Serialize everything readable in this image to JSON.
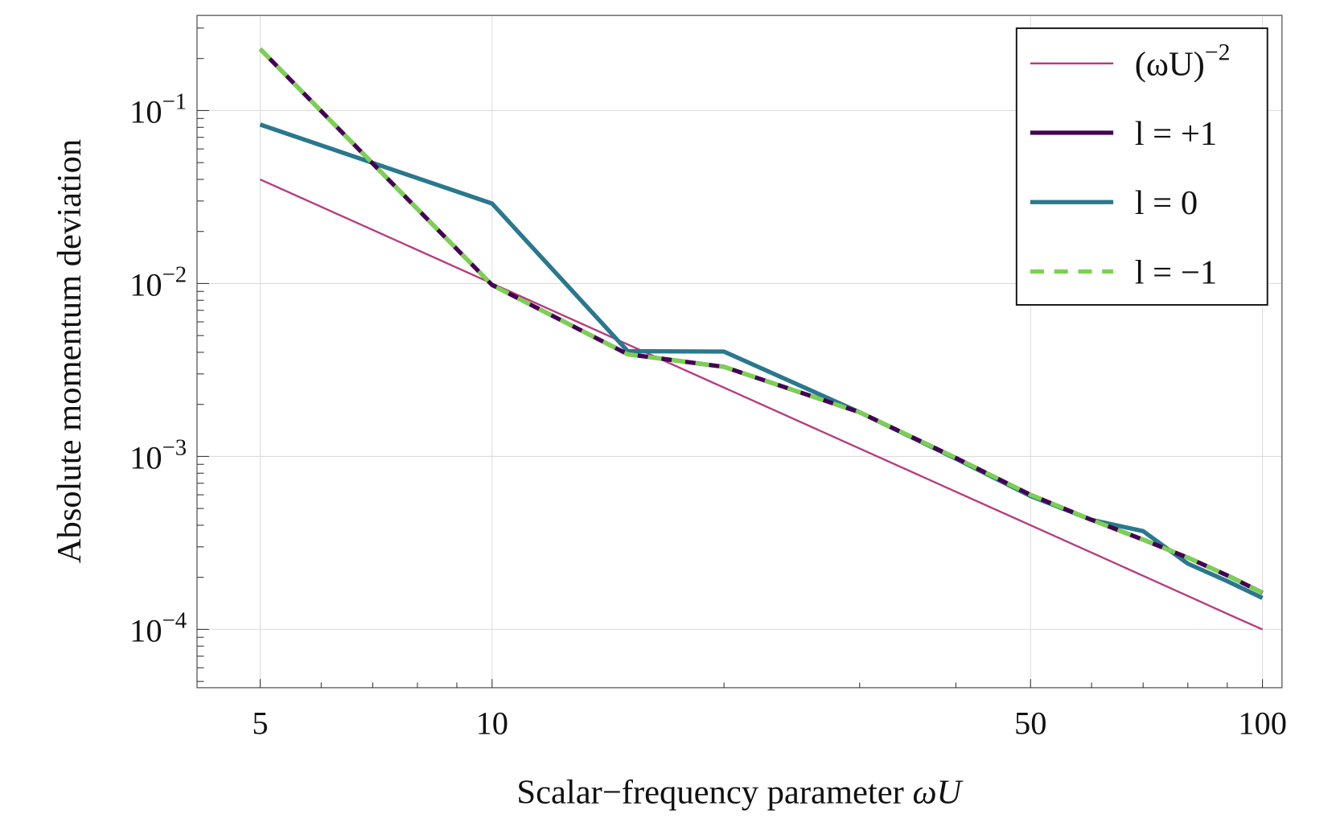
{
  "chart_data": {
    "type": "line",
    "title": "",
    "xlabel": "Scalar−frequency parameter ",
    "xlabel_italic": "ωU",
    "ylabel": "Absolute momentum deviation",
    "xscale": "log",
    "yscale": "log",
    "xlim": [
      4.14,
      106
    ],
    "ylim": [
      4.6e-05,
      0.355
    ],
    "grid": true,
    "legend_position": "top-right",
    "x_ticks": [
      5,
      10,
      50,
      100
    ],
    "x_tick_labels": [
      "5",
      "10",
      "50",
      "100"
    ],
    "y_ticks": [
      0.1,
      0.01,
      0.001,
      0.0001
    ],
    "y_tick_labels": [
      {
        "base": "10",
        "exp": "−1"
      },
      {
        "base": "10",
        "exp": "−2"
      },
      {
        "base": "10",
        "exp": "−3"
      },
      {
        "base": "10",
        "exp": "−4"
      }
    ],
    "x": [
      5,
      10,
      15,
      20,
      30,
      40,
      50,
      60,
      70,
      80,
      90,
      100
    ],
    "series": [
      {
        "name": "(ωU)−2",
        "label_base": "(ωU)",
        "label_exp": "−2",
        "color": "#b83a7e",
        "style": "thin",
        "values": [
          0.04,
          0.01,
          0.004444,
          0.0025,
          0.001111,
          0.000625,
          0.0004,
          0.000278,
          0.000204,
          0.000156,
          0.000123,
          0.0001
        ]
      },
      {
        "name": "l = +1",
        "label_base": "l = +1",
        "color": "#440154",
        "style": "solid",
        "values": [
          0.227,
          0.0098,
          0.0039,
          0.0033,
          0.0018,
          0.00098,
          0.0006,
          0.00043,
          0.00033,
          0.00026,
          0.000205,
          0.000163
        ]
      },
      {
        "name": "l = 0",
        "label_base": "l = 0",
        "color": "#29788e",
        "style": "solid",
        "values": [
          0.083,
          0.029,
          0.00406,
          0.00404,
          0.0018,
          0.00097,
          0.00059,
          0.00043,
          0.00037,
          0.00024,
          0.00019,
          0.000152
        ]
      },
      {
        "name": "l = −1",
        "label_base": "l = −1",
        "color": "#7ad151",
        "style": "dashed",
        "values": [
          0.227,
          0.0098,
          0.0039,
          0.0033,
          0.0018,
          0.00098,
          0.0006,
          0.00043,
          0.00033,
          0.00026,
          0.000205,
          0.000163
        ]
      }
    ]
  }
}
